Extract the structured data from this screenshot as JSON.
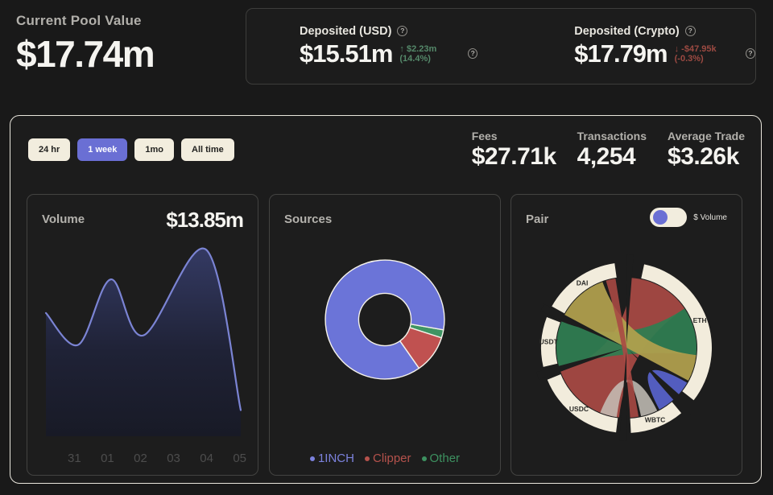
{
  "header": {
    "pool": {
      "label": "Current Pool Value",
      "value": "$17.74m"
    },
    "deposited_usd": {
      "label": "Deposited (USD)",
      "value": "$15.51m",
      "change": "↑ $2.23m (14.4%)",
      "direction": "up"
    },
    "deposited_crypto": {
      "label": "Deposited (Crypto)",
      "value": "$17.79m",
      "change": "↓ -$47.95k (-0.3%)",
      "direction": "down"
    },
    "help_glyph": "?"
  },
  "filters": {
    "options": [
      {
        "label": "24 hr",
        "active": false
      },
      {
        "label": "1 week",
        "active": true
      },
      {
        "label": "1mo",
        "active": false
      },
      {
        "label": "All time",
        "active": false
      }
    ]
  },
  "stats": [
    {
      "label": "Fees",
      "value": "$27.71k"
    },
    {
      "label": "Transactions",
      "value": "4,254"
    },
    {
      "label": "Average Trade",
      "value": "$3.26k"
    }
  ],
  "cards": {
    "volume": {
      "title": "Volume",
      "value": "$13.85m"
    },
    "sources": {
      "title": "Sources"
    },
    "pair": {
      "title": "Pair",
      "toggle_label": "$ Volume",
      "toggle_on": true
    }
  },
  "chart_data": [
    {
      "type": "area",
      "name": "volume",
      "title": "Volume",
      "total_label": "$13.85m",
      "x_ticks": [
        "31",
        "01",
        "02",
        "03",
        "04",
        "05"
      ],
      "points": [
        [
          0.08,
          0.66
        ],
        [
          0.22,
          0.49
        ],
        [
          0.36,
          0.84
        ],
        [
          0.5,
          0.54
        ],
        [
          0.77,
          1.0
        ],
        [
          0.92,
          0.14
        ]
      ],
      "line_color": "#7b84d4",
      "fill_top": "#343a63",
      "fill_mid": "#1f2236",
      "fill_bottom": "#181a26",
      "grid": false
    },
    {
      "type": "donut",
      "name": "sources",
      "title": "Sources",
      "start_angle": 100,
      "slices": [
        {
          "label": "Other",
          "pct": 2.2,
          "color": "#3f9463"
        },
        {
          "label": "Clipper",
          "pct": 10.3,
          "color": "#c05150"
        },
        {
          "label": "1INCH",
          "pct": 87.5,
          "color": "#6b74d8"
        }
      ],
      "stroke": "#f5f2ea",
      "legend": [
        {
          "label": "1INCH",
          "color": "#7c82dd"
        },
        {
          "label": "Clipper",
          "color": "#b5524c"
        },
        {
          "label": "Other",
          "color": "#3d9160"
        }
      ],
      "legend_position": "bottom"
    },
    {
      "type": "chord",
      "name": "pair",
      "title": "Pair",
      "arc_color": "#f2ecdc",
      "label_color": "#2b2b28",
      "arcs": [
        {
          "label": "ETH",
          "start": 12,
          "end": 128
        },
        {
          "label": "WBTC",
          "start": 140,
          "end": 177
        },
        {
          "label": "USDC",
          "start": 187,
          "end": 248
        },
        {
          "label": "USDT",
          "start": 257,
          "end": 291
        },
        {
          "label": "DAI",
          "start": 299,
          "end": 352
        }
      ],
      "ribbons": [
        {
          "source": "ETH",
          "target": "USDC",
          "from": [
            4,
            56
          ],
          "to": [
            186,
            250
          ],
          "color": "#a84944",
          "opacity": 0.93
        },
        {
          "source": "ETH",
          "target": "USDT",
          "from": [
            56,
            96
          ],
          "to": [
            254,
            292
          ],
          "color": "#2f7e52",
          "opacity": 0.93
        },
        {
          "source": "ETH",
          "target": "DAI",
          "from": [
            96,
            118
          ],
          "to": [
            298,
            340
          ],
          "color": "#b2a04d",
          "opacity": 0.93
        },
        {
          "source": "WBTC",
          "target": "USDC",
          "from": [
            154,
            168
          ],
          "to": [
            188,
            202
          ],
          "color": "#c6c1b8",
          "opacity": 0.85
        },
        {
          "source": "ETH",
          "target": "WBTC",
          "from": [
            120,
            132
          ],
          "to": [
            138,
            152
          ],
          "color": "#5661c8",
          "opacity": 0.95
        },
        {
          "source": "DAI",
          "target": "WBTC",
          "from": [
            343,
            351
          ],
          "to": [
            170,
            177
          ],
          "color": "#a84944",
          "opacity": 0.9
        }
      ],
      "gaps": [
        2,
        134,
        182,
        252.5,
        295.5
      ]
    }
  ]
}
